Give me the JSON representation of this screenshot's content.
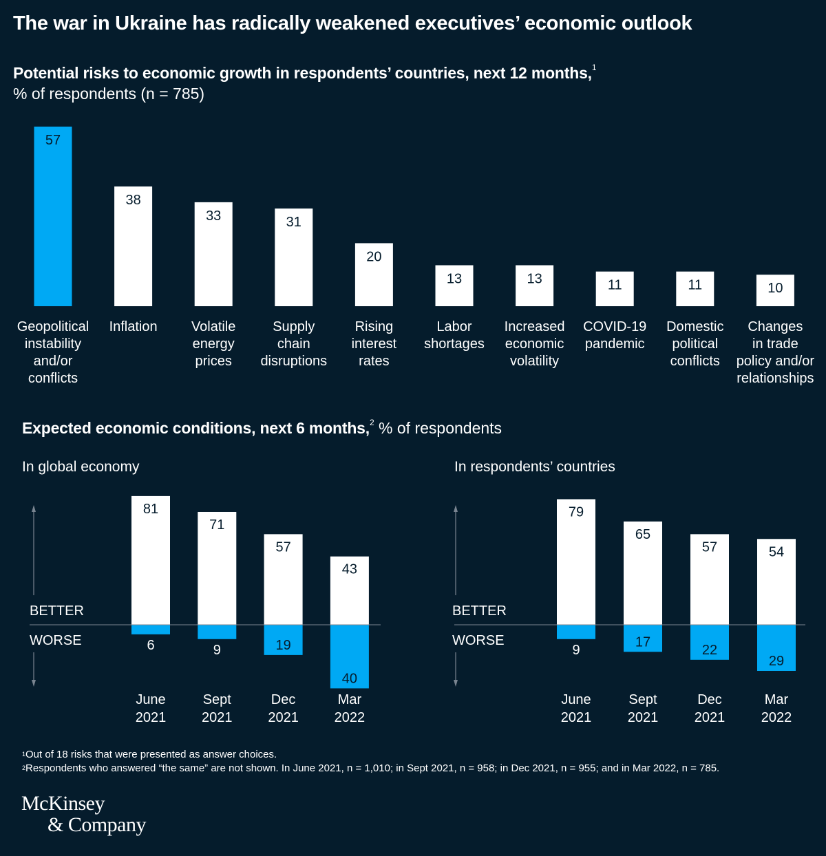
{
  "title": "The war in Ukraine has radically weakened executives’ economic outlook",
  "colors": {
    "background": "#051c2c",
    "highlight": "#00a9f4",
    "bar": "#ffffff",
    "text": "#ffffff",
    "label_in_bar": "#051c2c",
    "axis": "#7a8591"
  },
  "chart_data": [
    {
      "type": "bar",
      "title": "Potential risks to economic growth in respondents’ countries, next 12 months,",
      "title_footnote": "1",
      "subtitle": "% of respondents (n = 785)",
      "xlabel": "",
      "ylabel": "",
      "ylim": [
        0,
        57
      ],
      "grid": false,
      "categories": [
        [
          "Geopolitical",
          "instability",
          "and/or",
          "conflicts"
        ],
        [
          "Inflation"
        ],
        [
          "Volatile",
          "energy",
          "prices"
        ],
        [
          "Supply",
          "chain",
          "disruptions"
        ],
        [
          "Rising",
          "interest",
          "rates"
        ],
        [
          "Labor",
          "shortages"
        ],
        [
          "Increased",
          "economic",
          "volatility"
        ],
        [
          "COVID-19",
          "pandemic"
        ],
        [
          "Domestic",
          "political",
          "conflicts"
        ],
        [
          "Changes",
          "in trade",
          "policy and/or",
          "relationships"
        ]
      ],
      "values": [
        57,
        38,
        33,
        31,
        20,
        13,
        13,
        11,
        11,
        10
      ],
      "highlighted_index": 0
    },
    {
      "type": "bar",
      "title": "In global economy",
      "categories": [
        [
          "June",
          "2021"
        ],
        [
          "Sept",
          "2021"
        ],
        [
          "Dec",
          "2021"
        ],
        [
          "Mar",
          "2022"
        ]
      ],
      "series": [
        {
          "name": "BETTER",
          "values": [
            81,
            71,
            57,
            43
          ]
        },
        {
          "name": "WORSE",
          "values": [
            6,
            9,
            19,
            40
          ]
        }
      ],
      "ylim": [
        -40,
        81
      ],
      "grid": false
    },
    {
      "type": "bar",
      "title": "In respondents’ countries",
      "categories": [
        [
          "June",
          "2021"
        ],
        [
          "Sept",
          "2021"
        ],
        [
          "Dec",
          "2021"
        ],
        [
          "Mar",
          "2022"
        ]
      ],
      "series": [
        {
          "name": "BETTER",
          "values": [
            79,
            65,
            57,
            54
          ]
        },
        {
          "name": "WORSE",
          "values": [
            9,
            17,
            22,
            29
          ]
        }
      ],
      "ylim": [
        -29,
        79
      ],
      "grid": false
    }
  ],
  "section2": {
    "title_bold": "Expected economic conditions, next 6 months,",
    "title_footnote": "2",
    "title_rest": " % of respondents"
  },
  "axis_labels": {
    "better": "BETTER",
    "worse": "WORSE"
  },
  "footnotes": [
    {
      "mark": "1",
      "text": "Out of 18 risks that were presented as answer choices."
    },
    {
      "mark": "2",
      "text": "Respondents who answered “the same” are not shown. In June 2021, n = 1,010; in Sept 2021, n = 958; in Dec 2021, n = 955; and in Mar 2022, n = 785."
    }
  ],
  "logo": {
    "line1": "McKinsey",
    "line2": "& Company"
  }
}
